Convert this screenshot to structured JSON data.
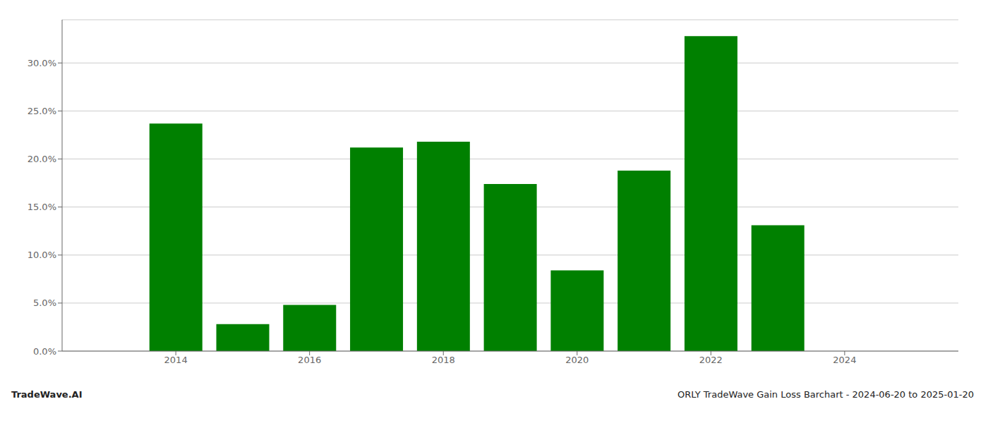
{
  "chart_data": {
    "type": "bar",
    "x": [
      2014,
      2015,
      2016,
      2017,
      2018,
      2019,
      2020,
      2021,
      2022,
      2023
    ],
    "values": [
      0.237,
      0.028,
      0.048,
      0.212,
      0.218,
      0.174,
      0.084,
      0.188,
      0.328,
      0.131
    ],
    "color": "#008000",
    "xlim": [
      2012.3,
      2025.7
    ],
    "xticks": [
      2014,
      2016,
      2018,
      2020,
      2022,
      2024
    ],
    "ylim": [
      0,
      0.345
    ],
    "yticks": [
      {
        "value": 0.0,
        "label": "0.0%"
      },
      {
        "value": 0.05,
        "label": "5.0%"
      },
      {
        "value": 0.1,
        "label": "10.0%"
      },
      {
        "value": 0.15,
        "label": "15.0%"
      },
      {
        "value": 0.2,
        "label": "20.0%"
      },
      {
        "value": 0.25,
        "label": "25.0%"
      },
      {
        "value": 0.3,
        "label": "30.0%"
      }
    ],
    "grid": true,
    "annotations": [
      "TradeWave.AI",
      "ORLY TradeWave Gain Loss Barchart - 2024-06-20 to 2025-01-20"
    ]
  }
}
